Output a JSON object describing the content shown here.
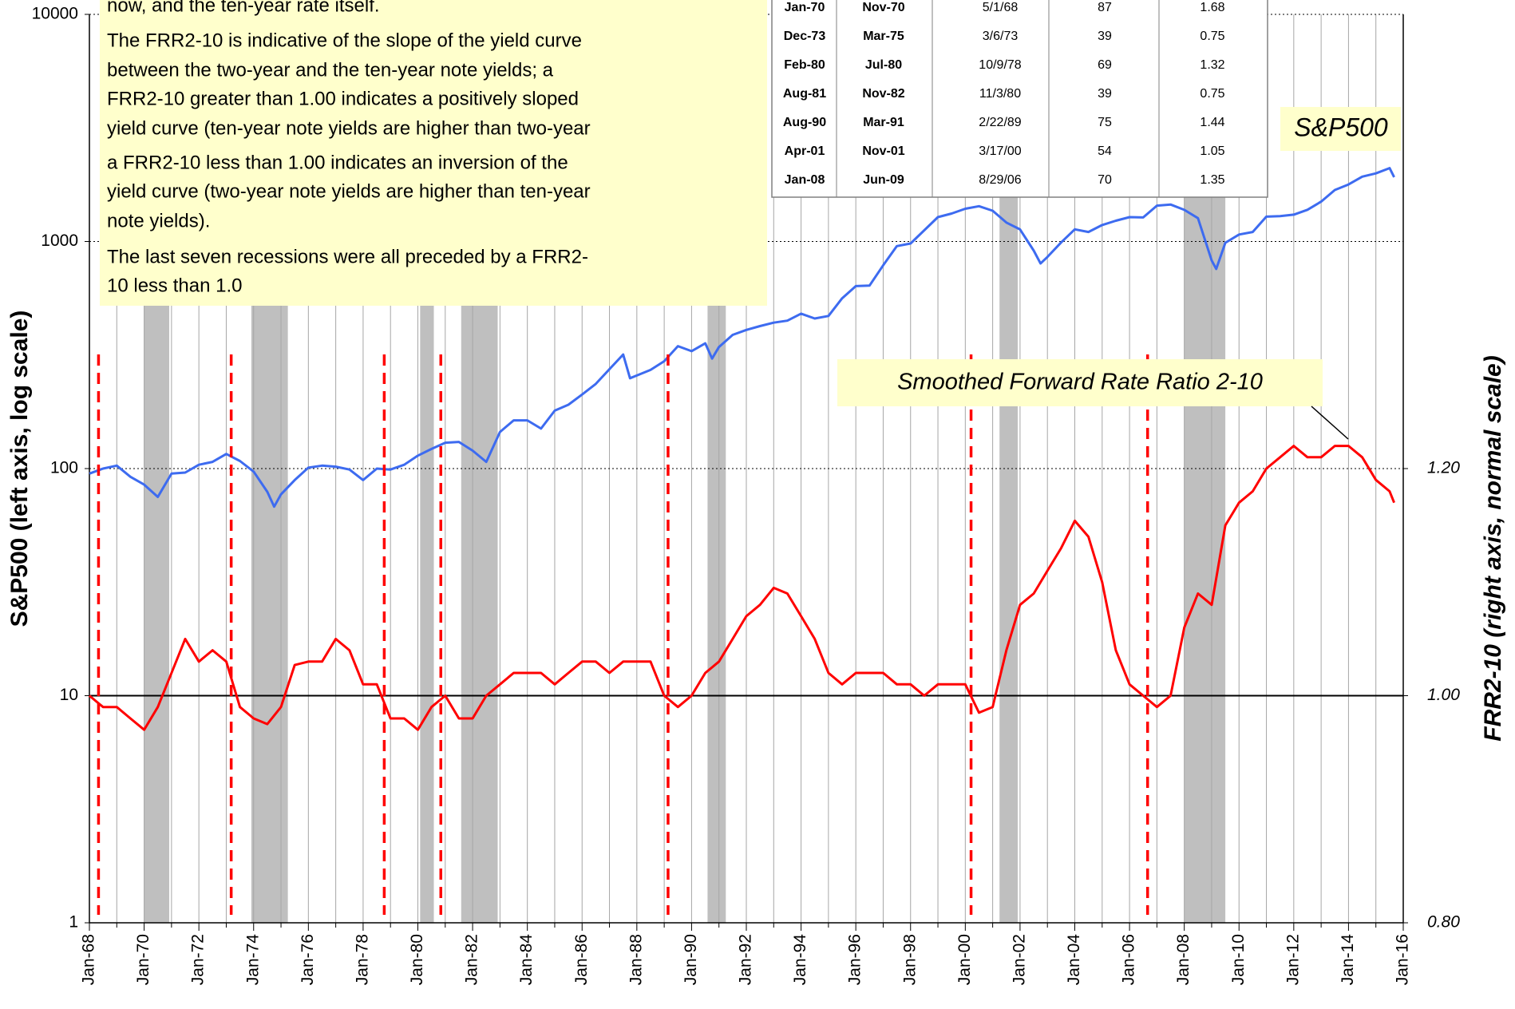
{
  "chart_data": {
    "type": "line",
    "y_label": "S&P500  (left axis, log scale)",
    "y2_label": "FRR2-10  (right axis, normal scale)",
    "xlim": [
      "Jan-68",
      "Jan-16"
    ],
    "xticks": [
      "Jan-68",
      "Jan-70",
      "Jan-72",
      "Jan-74",
      "Jan-76",
      "Jan-78",
      "Jan-80",
      "Jan-82",
      "Jan-84",
      "Jan-86",
      "Jan-88",
      "Jan-90",
      "Jan-92",
      "Jan-94",
      "Jan-96",
      "Jan-98",
      "Jan-00",
      "Jan-02",
      "Jan-04",
      "Jan-06",
      "Jan-08",
      "Jan-10",
      "Jan-12",
      "Jan-14",
      "Jan-16"
    ],
    "yscale": "log",
    "ylim": [
      1,
      10000
    ],
    "yticks": [
      1,
      10,
      100,
      1000,
      10000
    ],
    "y2lim": [
      0.8,
      1.6
    ],
    "y2ticks": [
      {
        "value": 0.8,
        "label": "0.80"
      },
      {
        "value": 1.0,
        "label": "1.00"
      },
      {
        "value": 1.2,
        "label": "1.20"
      }
    ],
    "y2_reference_line": 1.0,
    "grid": true,
    "series": [
      {
        "name": "S&P500",
        "color": "#3d6bf0",
        "x": [
          "Jan-68",
          "Jul-68",
          "Jan-69",
          "Jul-69",
          "Jan-70",
          "Jul-70",
          "Jan-71",
          "Jul-71",
          "Jan-72",
          "Jul-72",
          "Jan-73",
          "Jul-73",
          "Jan-74",
          "Jul-74",
          "Oct-74",
          "Jan-75",
          "Jul-75",
          "Jan-76",
          "Jul-76",
          "Jan-77",
          "Jul-77",
          "Jan-78",
          "Jul-78",
          "Jan-79",
          "Jul-79",
          "Jan-80",
          "Jul-80",
          "Jan-81",
          "Jul-81",
          "Jan-82",
          "Jul-82",
          "Jan-83",
          "Jul-83",
          "Jan-84",
          "Jul-84",
          "Jan-85",
          "Jul-85",
          "Jan-86",
          "Jul-86",
          "Jan-87",
          "Jul-87",
          "Oct-87",
          "Jan-88",
          "Jul-88",
          "Jan-89",
          "Jul-89",
          "Jan-90",
          "Jul-90",
          "Oct-90",
          "Jan-91",
          "Jul-91",
          "Jan-92",
          "Jul-92",
          "Jan-93",
          "Jul-93",
          "Jan-94",
          "Jul-94",
          "Jan-95",
          "Jul-95",
          "Jan-96",
          "Jul-96",
          "Jan-97",
          "Jul-97",
          "Jan-98",
          "Jul-98",
          "Jan-99",
          "Jul-99",
          "Jan-00",
          "Jul-00",
          "Jan-01",
          "Jul-01",
          "Jan-02",
          "Jul-02",
          "Oct-02",
          "Jan-03",
          "Jul-03",
          "Jan-04",
          "Jul-04",
          "Jan-05",
          "Jul-05",
          "Jan-06",
          "Jul-06",
          "Jan-07",
          "Jul-07",
          "Jan-08",
          "Jul-08",
          "Jan-09",
          "Mar-09",
          "Jul-09",
          "Jan-10",
          "Jul-10",
          "Jan-11",
          "Jul-11",
          "Jan-12",
          "Jul-12",
          "Jan-13",
          "Jul-13",
          "Jan-14",
          "Jul-14",
          "Jan-15",
          "Jul-15",
          "Sep-15"
        ],
        "values": [
          95,
          100,
          103,
          92,
          85,
          75,
          95,
          96,
          104,
          107,
          116,
          108,
          97,
          79,
          68,
          77,
          89,
          101,
          103,
          102,
          99,
          89,
          100,
          99,
          104,
          114,
          122,
          130,
          131,
          120,
          107,
          145,
          163,
          163,
          150,
          180,
          191,
          212,
          236,
          274,
          318,
          250,
          257,
          272,
          297,
          346,
          329,
          356,
          305,
          343,
          388,
          408,
          424,
          439,
          448,
          481,
          458,
          470,
          562,
          636,
          639,
          786,
          954,
          980,
          1120,
          1280,
          1328,
          1394,
          1430,
          1366,
          1211,
          1130,
          911,
          800,
          855,
          990,
          1131,
          1101,
          1181,
          1234,
          1280,
          1276,
          1438,
          1455,
          1378,
          1267,
          825,
          757,
          987,
          1073,
          1101,
          1286,
          1292,
          1312,
          1379,
          1498,
          1685,
          1782,
          1930,
          1995,
          2104,
          1920
        ]
      },
      {
        "name": "Smoothed Forward Rate Ratio 2-10",
        "color": "#ff0000",
        "axis": "y2",
        "x": [
          "Jan-68",
          "Jul-68",
          "Jan-69",
          "Jul-69",
          "Jan-70",
          "Jul-70",
          "Jan-71",
          "Jul-71",
          "Jan-72",
          "Jul-72",
          "Jan-73",
          "Jul-73",
          "Jan-74",
          "Jul-74",
          "Jan-75",
          "Jul-75",
          "Jan-76",
          "Jul-76",
          "Jan-77",
          "Jul-77",
          "Jan-78",
          "Jul-78",
          "Jan-79",
          "Jul-79",
          "Jan-80",
          "Jul-80",
          "Jan-81",
          "Jul-81",
          "Jan-82",
          "Jul-82",
          "Jan-83",
          "Jul-83",
          "Jan-84",
          "Jul-84",
          "Jan-85",
          "Jul-85",
          "Jan-86",
          "Jul-86",
          "Jan-87",
          "Jul-87",
          "Jan-88",
          "Jul-88",
          "Jan-89",
          "Jul-89",
          "Jan-90",
          "Jul-90",
          "Jan-91",
          "Jul-91",
          "Jan-92",
          "Jul-92",
          "Jan-93",
          "Jul-93",
          "Jan-94",
          "Jul-94",
          "Jan-95",
          "Jul-95",
          "Jan-96",
          "Jul-96",
          "Jan-97",
          "Jul-97",
          "Jan-98",
          "Jul-98",
          "Jan-99",
          "Jul-99",
          "Jan-00",
          "Jul-00",
          "Jan-01",
          "Jul-01",
          "Jan-02",
          "Jul-02",
          "Jan-03",
          "Jul-03",
          "Jan-04",
          "Jul-04",
          "Jan-05",
          "Jul-05",
          "Jan-06",
          "Jul-06",
          "Jan-07",
          "Jul-07",
          "Jan-08",
          "Jul-08",
          "Jan-09",
          "Jul-09",
          "Jan-10",
          "Jul-10",
          "Jan-11",
          "Jul-11",
          "Jan-12",
          "Jul-12",
          "Jan-13",
          "Jul-13",
          "Jan-14",
          "Jul-14",
          "Jan-15",
          "Jul-15",
          "Sep-15"
        ],
        "values": [
          1.0,
          0.99,
          0.99,
          0.98,
          0.97,
          0.99,
          1.02,
          1.05,
          1.03,
          1.04,
          1.03,
          0.99,
          0.98,
          0.975,
          0.99,
          1.027,
          1.03,
          1.03,
          1.05,
          1.04,
          1.01,
          1.01,
          0.98,
          0.98,
          0.97,
          0.99,
          1.0,
          0.98,
          0.98,
          1.0,
          1.01,
          1.02,
          1.02,
          1.02,
          1.01,
          1.02,
          1.03,
          1.03,
          1.02,
          1.03,
          1.03,
          1.03,
          1.0,
          0.99,
          1.0,
          1.02,
          1.03,
          1.05,
          1.07,
          1.08,
          1.095,
          1.09,
          1.07,
          1.05,
          1.02,
          1.01,
          1.02,
          1.02,
          1.02,
          1.01,
          1.01,
          1.0,
          1.01,
          1.01,
          1.01,
          0.985,
          0.99,
          1.04,
          1.08,
          1.09,
          1.11,
          1.13,
          1.154,
          1.14,
          1.1,
          1.04,
          1.01,
          1.0,
          0.99,
          1.0,
          1.06,
          1.09,
          1.08,
          1.15,
          1.17,
          1.18,
          1.2,
          1.21,
          1.22,
          1.21,
          1.21,
          1.22,
          1.22,
          1.21,
          1.19,
          1.18,
          1.17
        ]
      }
    ]
  },
  "note": {
    "lines": [
      "now, and the ten-year rate itself.",
      "The FRR2-10  is indicative of the slope of the yield curve",
      "between the two-year and the ten-year note yields; a",
      "FRR2-10 greater than 1.00 indicates a positively sloped",
      "yield curve (ten-year note yields are higher than two-year",
      "a FRR2-10 less than 1.00 indicates an inversion of the",
      "yield curve (two-year note yields are higher than ten-year",
      "note yields).",
      "The last seven recessions were all preceded by a FRR2-",
      "10 less than 1.0"
    ]
  },
  "table": {
    "rows": [
      [
        "Jan-70",
        "Nov-70",
        "5/1/68",
        87,
        1.68
      ],
      [
        "Dec-73",
        "Mar-75",
        "3/6/73",
        39,
        0.75
      ],
      [
        "Feb-80",
        "Jul-80",
        "10/9/78",
        69,
        1.32
      ],
      [
        "Aug-81",
        "Nov-82",
        "11/3/80",
        39,
        0.75
      ],
      [
        "Aug-90",
        "Mar-91",
        "2/22/89",
        75,
        1.44
      ],
      [
        "Apr-01",
        "Nov-01",
        "3/17/00",
        54,
        1.05
      ],
      [
        "Jan-08",
        "Jun-09",
        "8/29/06",
        70,
        1.35
      ]
    ]
  }
}
